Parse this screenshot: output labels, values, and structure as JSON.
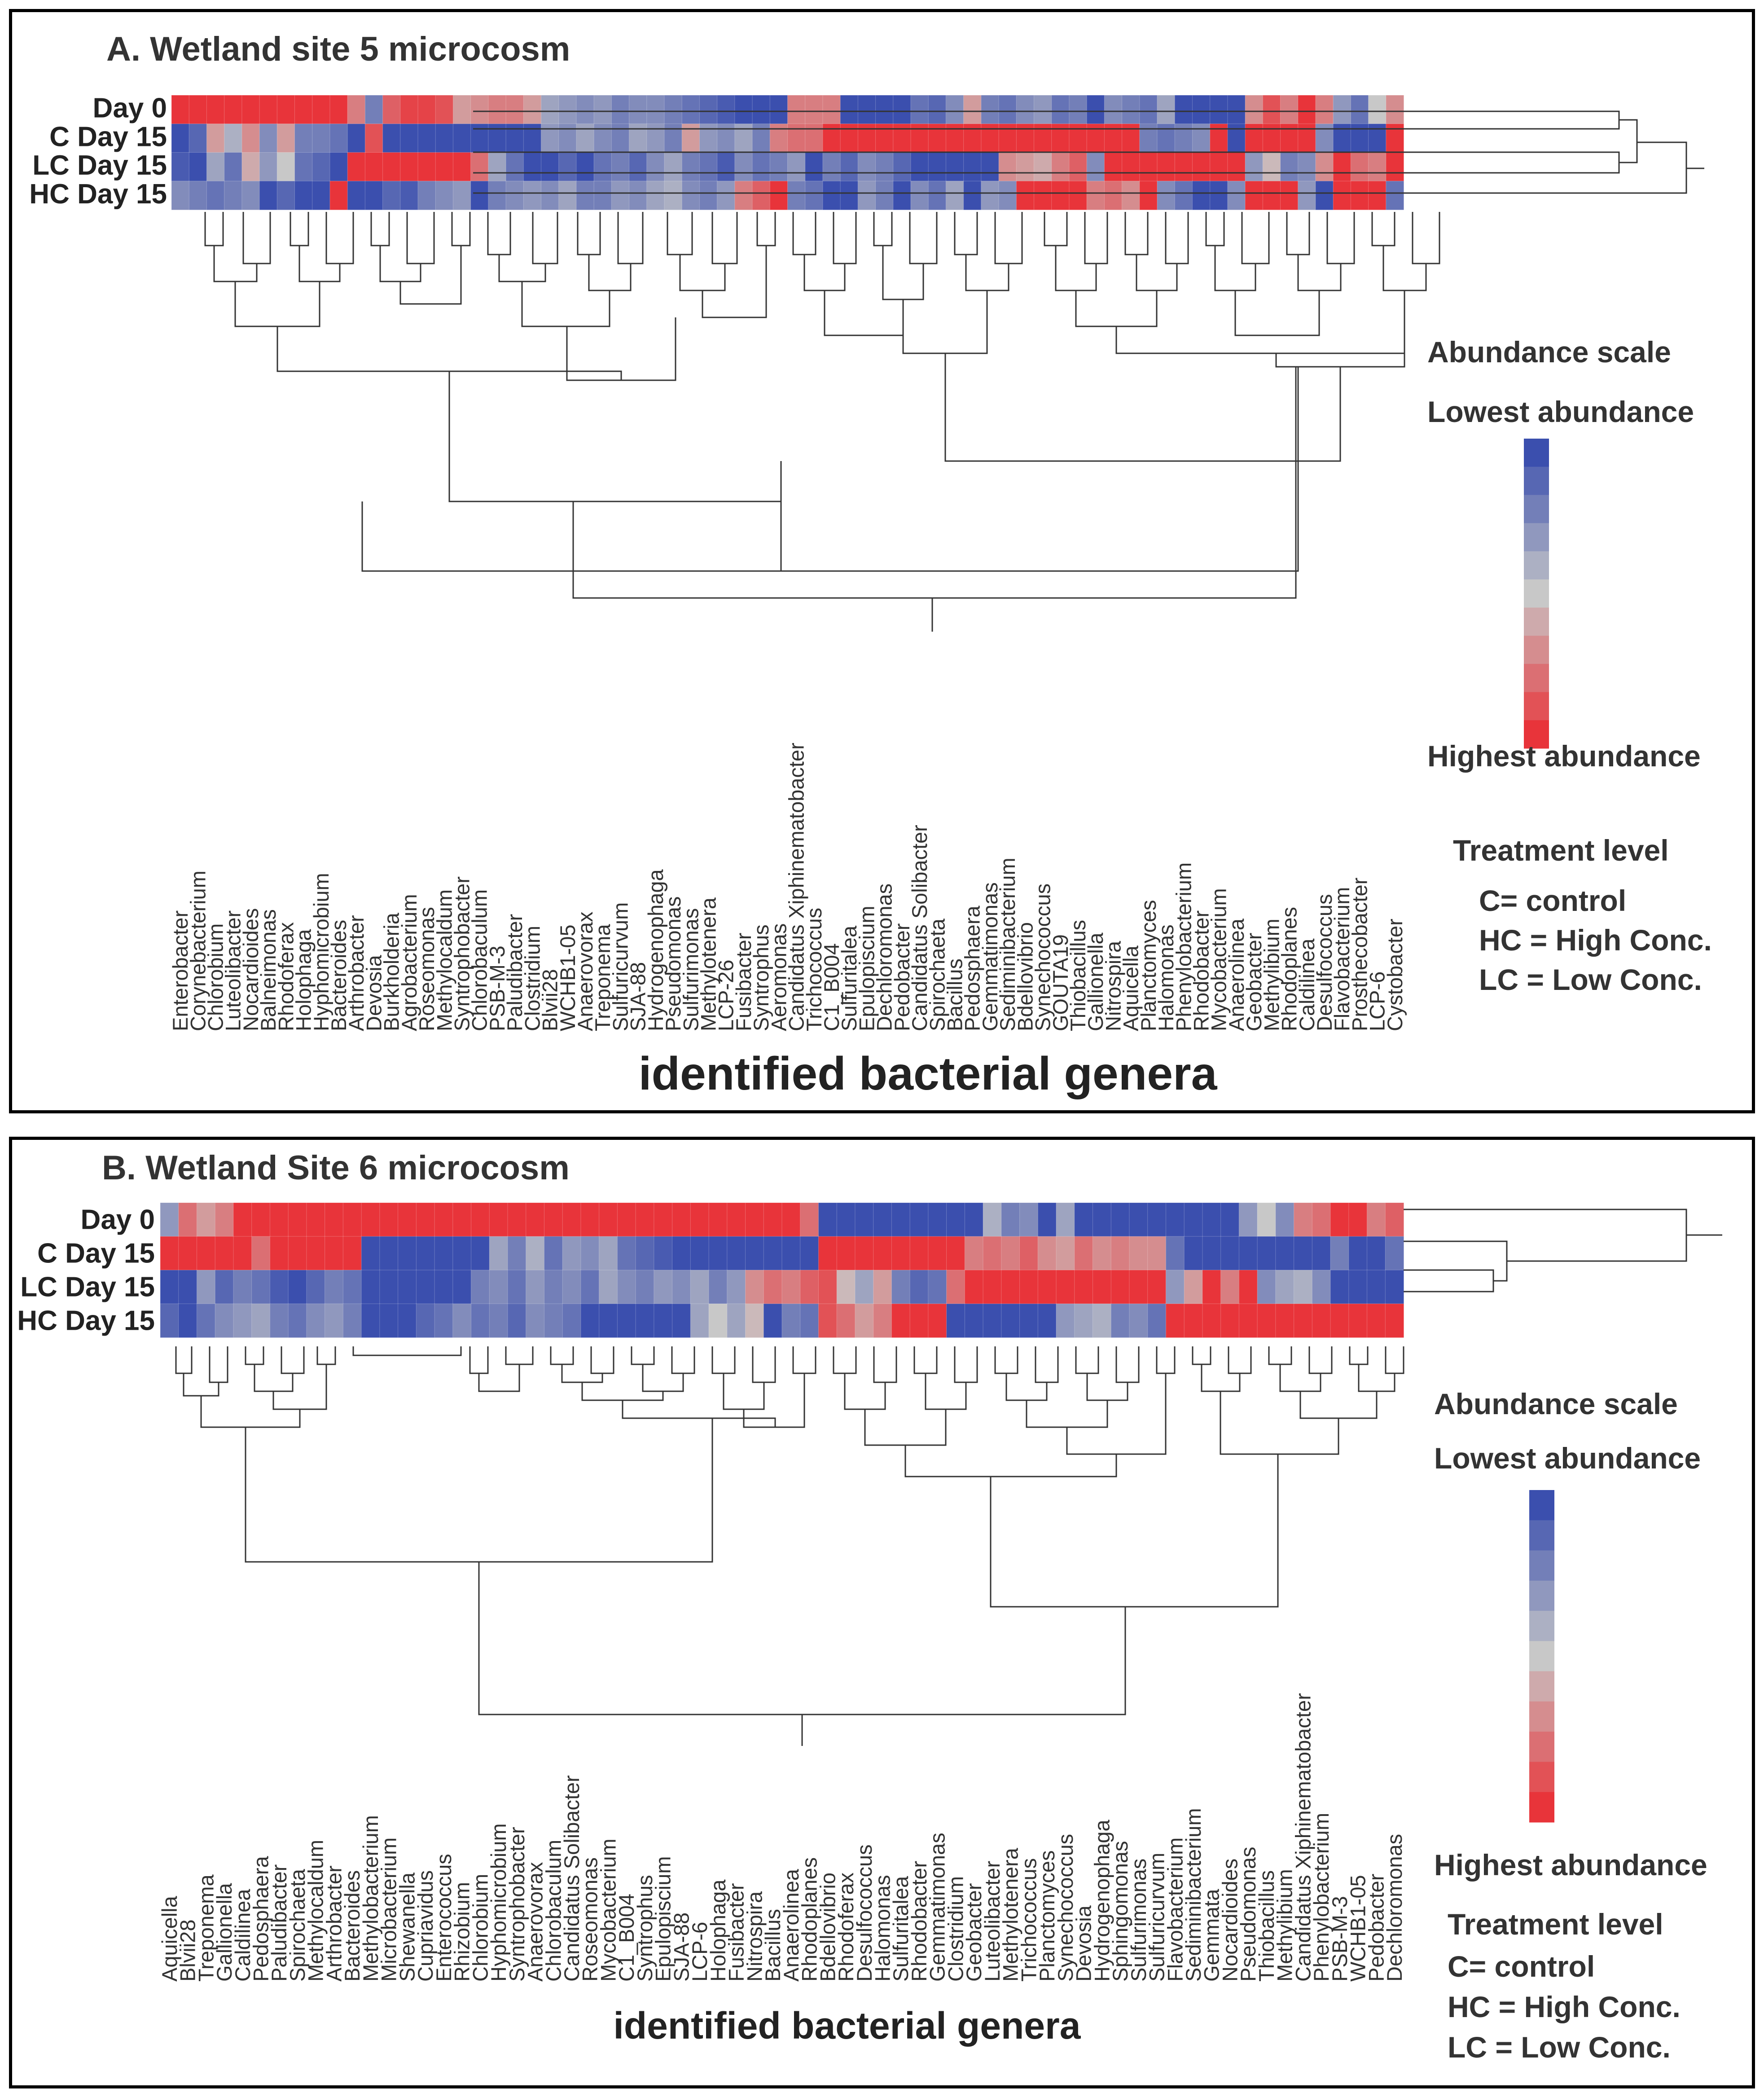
{
  "chart_data": [
    {
      "type": "heatmap",
      "title": "A. Wetland site 5 microcosm",
      "row_labels": [
        "Day 0",
        "C Day 15",
        "LC Day 15",
        "HC Day 15"
      ],
      "col_labels": [
        "Enterobacter",
        "Corynebacterium",
        "Chlorobium",
        "Luteolibacter",
        "Nocardioides",
        "Balneimonas",
        "Rhodoferax",
        "Holophaga",
        "Hyphomicrobium",
        "Bacteroides",
        "Arthrobacter",
        "Devosia",
        "Burkholderia",
        "Agrobacterium",
        "Roseomonas",
        "Methylocaldum",
        "Syntrophobacter",
        "Chlorobaculum",
        "PSB-M-3",
        "Paludibacter",
        "Clostridium",
        "Blvii28",
        "WCHB1-05",
        "Anaerovorax",
        "Treponema",
        "Sulfuricurvum",
        "SJA-88",
        "Hydrogenophaga",
        "Pseudomonas",
        "Sulfurimonas",
        "Methylotenera",
        "LCP-26",
        "Fusibacter",
        "Syntrophus",
        "Aeromonas",
        "Candidatus Xiphinematobacter",
        "Trichococcus",
        "C1_B004",
        "Sulfuritalea",
        "Epulopiscium",
        "Dechloromonas",
        "Pedobacter",
        "Candidatus Solibacter",
        "Spirochaeta",
        "Bacillus",
        "Pedosphaera",
        "Gemmatimonas",
        "Sediminibacterium",
        "Bdellovibrio",
        "Synechococcus",
        "GOUTA19",
        "Thiobacillus",
        "Gallionella",
        "Nitrospira",
        "Aquicella",
        "Planctomyces",
        "Halomonas",
        "Phenylobacterium",
        "Rhodobacter",
        "Mycobacterium",
        "Anaerolinea",
        "Geobacter",
        "Methylibium",
        "Rhodoplanes",
        "Caldilinea",
        "Desulfococcus",
        "Flavobacterium",
        "Prosthecobacter",
        "LCP-6",
        "Cystobacter"
      ],
      "xlabel": "identified bacterial genera",
      "legend_title": "Abundance scale",
      "legend_low": "Lowest abundance",
      "legend_high": "Highest abundance",
      "color_low": "#3b4fae",
      "color_mid": "#c8c8c8",
      "color_high": "#e8343a",
      "treatment_title": "Treatment level",
      "treatment_lines": [
        "C= control",
        "HC = High Conc.",
        "LC = Low Conc."
      ],
      "z_scale": [
        -1,
        1
      ],
      "values": [
        [
          1,
          1,
          1,
          1,
          1,
          1,
          1,
          1,
          1,
          1,
          0.5,
          -0.6,
          0.7,
          0.9,
          0.9,
          0.8,
          0.3,
          0.4,
          0.5,
          0.5,
          0.3,
          -0.3,
          -0.4,
          -0.5,
          -0.4,
          -0.6,
          -0.5,
          -0.5,
          -0.6,
          -0.7,
          -0.8,
          -0.9,
          -1,
          -1,
          -1,
          0.5,
          0.5,
          0.5,
          -1,
          -1,
          -1,
          -1,
          -0.7,
          -0.8,
          -0.5,
          0.3,
          -0.6,
          -0.7,
          -0.5,
          -0.4,
          -0.7,
          -0.6,
          -1,
          -0.5,
          -0.6,
          -0.7,
          -0.3,
          -1,
          -1,
          -1,
          -1,
          0.4,
          0.8,
          0.5,
          1,
          0.5,
          -0.4,
          -0.7,
          0,
          0.4
        ],
        [
          -1,
          -0.8,
          0.3,
          -0.2,
          0.4,
          -0.5,
          0.3,
          -0.6,
          -0.6,
          -0.7,
          -1,
          0.8,
          -1,
          -1,
          -1,
          -1,
          -1,
          -1,
          -1,
          -1,
          -1,
          -0.4,
          -0.5,
          -0.3,
          -0.5,
          -0.6,
          -0.3,
          -0.4,
          -0.6,
          0.3,
          -0.4,
          -0.5,
          -0.3,
          -0.6,
          0.5,
          0.6,
          0.6,
          1,
          1,
          1,
          1,
          1,
          1,
          1,
          1,
          1,
          1,
          1,
          1,
          1,
          1,
          1,
          1,
          1,
          1,
          -0.6,
          -0.7,
          -0.6,
          -0.5,
          1,
          -1,
          1,
          1,
          1,
          1,
          -0.5,
          -1,
          -1,
          -1,
          1
        ],
        [
          -0.9,
          -1,
          -0.3,
          -0.7,
          0.2,
          -0.4,
          0,
          -0.7,
          -0.8,
          -1,
          1,
          1,
          1,
          1,
          1,
          1,
          1,
          0.6,
          -0.3,
          -0.7,
          -1,
          -1,
          -0.8,
          -1,
          -0.7,
          -0.6,
          -0.8,
          -0.5,
          -0.3,
          -0.6,
          -0.7,
          -0.9,
          -0.5,
          -0.7,
          -0.6,
          -0.4,
          -1,
          -0.6,
          -0.8,
          -0.5,
          -0.6,
          -0.8,
          -1,
          -1,
          -1,
          -1,
          -1,
          0.4,
          0.3,
          0.2,
          0.5,
          0.7,
          -0.5,
          1,
          1,
          1,
          1,
          1,
          1,
          1,
          1,
          -0.4,
          0.1,
          -0.6,
          -0.5,
          0.4,
          1,
          0.6,
          0.5,
          1
        ],
        [
          -0.5,
          -0.6,
          -0.7,
          -0.6,
          -0.5,
          -1,
          -0.8,
          -1,
          -1,
          1,
          -1,
          -1,
          -0.8,
          -0.9,
          -0.6,
          -0.5,
          -0.4,
          -1,
          -0.6,
          -0.5,
          -0.4,
          -0.5,
          -0.3,
          -0.6,
          -0.6,
          -0.4,
          -0.5,
          -0.3,
          -0.2,
          -0.5,
          -0.6,
          -0.4,
          0.5,
          0.7,
          1,
          -0.6,
          -0.7,
          -1,
          -1,
          -0.4,
          -0.6,
          -1,
          -0.5,
          -0.7,
          -0.3,
          -1,
          -0.4,
          -0.5,
          1,
          1,
          1,
          1,
          0.5,
          0.6,
          0.4,
          1,
          -0.5,
          -0.7,
          -1,
          -1,
          -0.5,
          1,
          1,
          1,
          -0.4,
          -1,
          1,
          1,
          1,
          -0.7
        ]
      ]
    },
    {
      "type": "heatmap",
      "title": "B. Wetland Site 6 microcosm",
      "row_labels": [
        "Day 0",
        "C Day 15",
        "LC Day 15",
        "HC Day 15"
      ],
      "col_labels": [
        "Aquicella",
        "Blvii28",
        "Treponema",
        "Gallionella",
        "Caldilinea",
        "Pedosphaera",
        "Paludibacter",
        "Spirochaeta",
        "Methylocaldum",
        "Arthrobacter",
        "Bacteroides",
        "Methylobacterium",
        "Microbacterium",
        "Shewanella",
        "Cupriavidus",
        "Enterococcus",
        "Rhizobium",
        "Chlorobium",
        "Hyphomicrobium",
        "Syntrophobacter",
        "Anaerovorax",
        "Chlorobaculum",
        "Candidatus Solibacter",
        "Roseomonas",
        "Mycobacterium",
        "C1_B004",
        "Syntrophus",
        "Epulopiscium",
        "SJA-88",
        "LCP-6",
        "Holophaga",
        "Fusibacter",
        "Nitrospira",
        "Bacillus",
        "Anaerolinea",
        "Rhodoplanes",
        "Bdellovibrio",
        "Rhodoferax",
        "Desulfococcus",
        "Halomonas",
        "Sulfuritalea",
        "Rhodobacter",
        "Gemmatimonas",
        "Clostridium",
        "Geobacter",
        "Luteolibacter",
        "Methylotenera",
        "Trichococcus",
        "Planctomyces",
        "Synechococcus",
        "Devosia",
        "Hydrogenophaga",
        "Sphingomonas",
        "Sulfurimonas",
        "Sulfuricurvum",
        "Flavobacterium",
        "Sediminibacterium",
        "Gemmata",
        "Nocardioides",
        "Pseudomonas",
        "Thiobacillus",
        "Methylibium",
        "Candidatus Xiphinematobacter",
        "Phenylobacterium",
        "PSB-M-3",
        "WCHB1-05",
        "Pedobacter",
        "Dechloromonas"
      ],
      "xlabel": "identified bacterial genera",
      "legend_title": "Abundance scale",
      "legend_low": "Lowest abundance",
      "legend_high": "Highest abundance",
      "color_low": "#3b4fae",
      "color_mid": "#c8c8c8",
      "color_high": "#e8343a",
      "treatment_title": "Treatment level",
      "treatment_lines": [
        "C= control",
        "HC = High Conc.",
        "LC = Low Conc."
      ],
      "z_scale": [
        -1,
        1
      ],
      "values": [
        [
          -0.4,
          0.6,
          0.3,
          0.5,
          1,
          1,
          1,
          1,
          1,
          1,
          1,
          1,
          1,
          1,
          1,
          1,
          1,
          1,
          1,
          1,
          1,
          1,
          1,
          1,
          1,
          1,
          1,
          1,
          1,
          1,
          1,
          1,
          1,
          1,
          1,
          0.6,
          -1,
          -1,
          -1,
          -1,
          -1,
          -1,
          -1,
          -1,
          -1,
          -0.2,
          -0.6,
          -0.5,
          -1,
          -0.3,
          -1,
          -1,
          -1,
          -1,
          -1,
          -1,
          -1,
          -1,
          -1,
          -0.4,
          0,
          -0.5,
          0.5,
          0.6,
          1,
          1,
          0.5,
          0.7
        ],
        [
          1,
          1,
          1,
          1,
          1,
          0.6,
          1,
          1,
          1,
          1,
          1,
          -1,
          -1,
          -1,
          -1,
          -1,
          -1,
          -1,
          -0.3,
          -0.6,
          -0.2,
          -0.7,
          -0.4,
          -0.5,
          -0.3,
          -0.7,
          -0.8,
          -0.9,
          -1,
          -1,
          -1,
          -1,
          -1,
          -1,
          -1,
          -1,
          1,
          1,
          1,
          1,
          1,
          1,
          1,
          1,
          0.5,
          0.6,
          0.5,
          0.7,
          0.4,
          0.3,
          0.6,
          0.4,
          0.5,
          0.4,
          0.4,
          -0.7,
          -1,
          -1,
          -1,
          -1,
          -1,
          -1,
          -1,
          -1,
          -0.6,
          -1,
          -1,
          -0.7
        ],
        [
          -1,
          -1,
          -0.4,
          -0.8,
          -0.6,
          -0.7,
          -0.9,
          -1,
          -0.8,
          -0.6,
          -0.7,
          -1,
          -1,
          -1,
          -1,
          -1,
          -1,
          -0.6,
          -0.5,
          -0.7,
          -0.4,
          -0.6,
          -0.5,
          -0.7,
          -0.3,
          -0.5,
          -0.6,
          -0.4,
          -0.5,
          -0.3,
          -0.6,
          -0.4,
          0.4,
          0.6,
          0.5,
          0.7,
          0.8,
          0.1,
          -0.3,
          0.3,
          -0.6,
          -0.8,
          -0.7,
          0.6,
          1,
          1,
          1,
          1,
          1,
          1,
          1,
          1,
          1,
          1,
          1,
          -0.4,
          0.3,
          1,
          0.5,
          1,
          -0.5,
          -0.3,
          -0.2,
          -0.5,
          -1,
          -1,
          -1,
          -1
        ],
        [
          -0.8,
          -1,
          -0.7,
          -0.5,
          -0.4,
          -0.3,
          -0.6,
          -0.7,
          -0.5,
          -0.4,
          -0.6,
          -1,
          -1,
          -1,
          -0.8,
          -0.7,
          -0.5,
          -0.7,
          -0.6,
          -0.8,
          -0.5,
          -0.6,
          -0.7,
          -1,
          -1,
          -1,
          -1,
          -1,
          -1,
          -0.3,
          0,
          -0.3,
          0.1,
          -1,
          -0.6,
          -0.7,
          0.8,
          0.6,
          0.3,
          0.5,
          1,
          1,
          1,
          -1,
          -1,
          -1,
          -1,
          -1,
          -1,
          -0.4,
          -0.3,
          -0.2,
          -0.6,
          -0.5,
          -0.7,
          1,
          1,
          1,
          1,
          1,
          1,
          1,
          1,
          1,
          1,
          1,
          1,
          1
        ]
      ]
    }
  ]
}
